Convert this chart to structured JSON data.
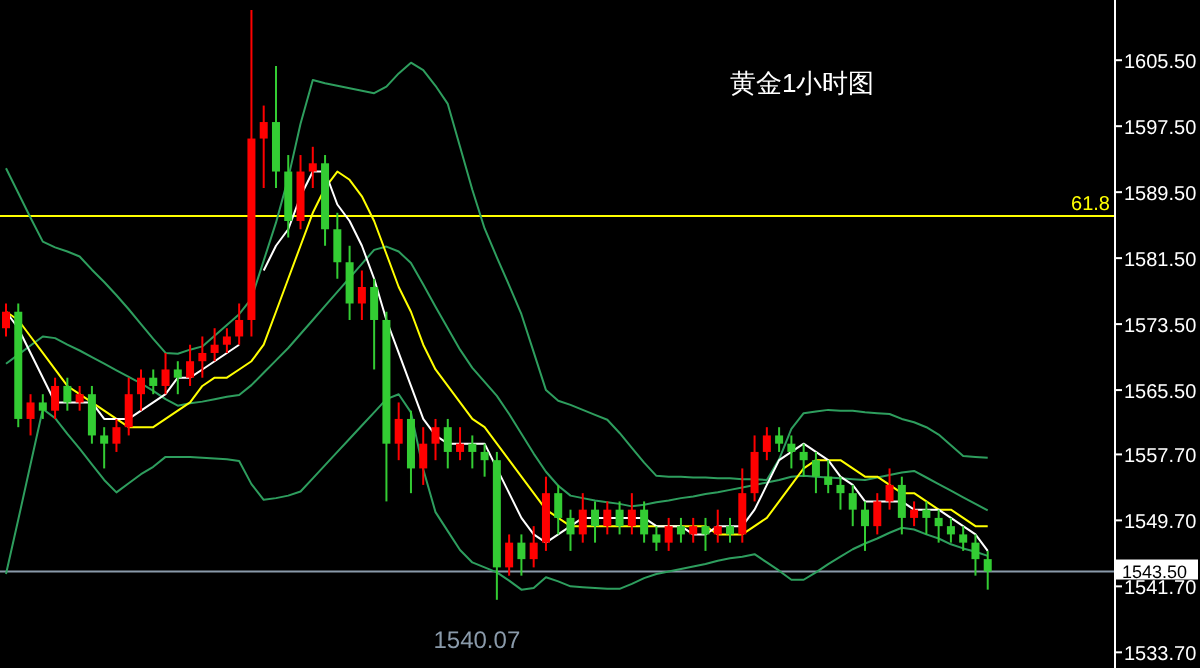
{
  "chart_data": {
    "type": "candlestick",
    "title": "黄金1小时图",
    "categories": [
      null,
      null,
      null,
      null,
      null,
      null,
      null,
      null,
      null,
      null,
      null,
      null,
      null,
      null,
      null,
      null,
      null,
      null,
      null,
      null,
      null,
      null,
      null,
      null,
      null,
      null,
      null,
      null,
      null,
      null,
      null,
      null,
      null,
      null,
      null,
      null,
      null,
      null,
      null,
      null,
      null,
      null,
      null,
      null,
      null,
      null,
      null,
      null,
      null,
      null,
      null,
      null,
      null,
      null,
      null,
      null,
      null,
      null,
      null,
      null,
      null,
      null,
      null,
      null,
      null,
      null,
      null,
      null,
      null,
      null,
      null,
      null,
      null,
      null,
      null,
      null,
      null,
      null,
      null,
      null,
      null
    ],
    "ohlc": [
      [
        1573,
        1576,
        1572,
        1575
      ],
      [
        1575,
        1576,
        1561,
        1562
      ],
      [
        1562,
        1565,
        1560,
        1564
      ],
      [
        1564,
        1565,
        1562,
        1563
      ],
      [
        1563,
        1567,
        1562,
        1566
      ],
      [
        1566,
        1567,
        1563,
        1564
      ],
      [
        1564,
        1566,
        1563,
        1565
      ],
      [
        1565,
        1566,
        1559,
        1560
      ],
      [
        1560,
        1561,
        1556,
        1559
      ],
      [
        1559,
        1562,
        1558,
        1561
      ],
      [
        1561,
        1567,
        1560,
        1565
      ],
      [
        1565,
        1568,
        1563,
        1567
      ],
      [
        1567,
        1568,
        1565,
        1566
      ],
      [
        1566,
        1570,
        1565,
        1568
      ],
      [
        1568,
        1569,
        1565,
        1567
      ],
      [
        1567,
        1571,
        1566,
        1569
      ],
      [
        1569,
        1572,
        1567,
        1570
      ],
      [
        1570,
        1573,
        1569,
        1571
      ],
      [
        1571,
        1573,
        1570,
        1572
      ],
      [
        1572,
        1576,
        1571,
        1574
      ],
      [
        1574,
        1611.6,
        1572,
        1596
      ],
      [
        1596,
        1600,
        1590,
        1598
      ],
      [
        1598,
        1604.8,
        1590,
        1592
      ],
      [
        1592,
        1594,
        1584,
        1586
      ],
      [
        1586,
        1594,
        1585,
        1592
      ],
      [
        1592,
        1595,
        1590,
        1593
      ],
      [
        1593,
        1594,
        1583,
        1585
      ],
      [
        1585,
        1587,
        1579,
        1581
      ],
      [
        1581,
        1583,
        1574,
        1576
      ],
      [
        1576,
        1580,
        1574,
        1578
      ],
      [
        1578,
        1579,
        1568,
        1574
      ],
      [
        1574,
        1575,
        1552,
        1559
      ],
      [
        1559,
        1564,
        1557,
        1562
      ],
      [
        1562,
        1563,
        1553,
        1556
      ],
      [
        1556,
        1561,
        1554,
        1559
      ],
      [
        1559,
        1562,
        1557,
        1561
      ],
      [
        1561,
        1562,
        1556,
        1558
      ],
      [
        1558,
        1561,
        1557,
        1559
      ],
      [
        1559,
        1560,
        1556,
        1558
      ],
      [
        1558,
        1559,
        1555,
        1557
      ],
      [
        1557,
        1558,
        1540.07,
        1544
      ],
      [
        1544,
        1548,
        1543,
        1547
      ],
      [
        1547,
        1548,
        1543,
        1545
      ],
      [
        1545,
        1549,
        1544,
        1547
      ],
      [
        1547,
        1555,
        1546,
        1553
      ],
      [
        1553,
        1554,
        1548,
        1550
      ],
      [
        1550,
        1551,
        1546,
        1548
      ],
      [
        1548,
        1553,
        1547,
        1551
      ],
      [
        1551,
        1552,
        1547,
        1549
      ],
      [
        1549,
        1552,
        1548,
        1551
      ],
      [
        1551,
        1552,
        1548,
        1549
      ],
      [
        1549,
        1553,
        1548,
        1551
      ],
      [
        1551,
        1552,
        1547,
        1548
      ],
      [
        1548,
        1549,
        1546,
        1547
      ],
      [
        1547,
        1550,
        1546,
        1549
      ],
      [
        1549,
        1550,
        1547,
        1548
      ],
      [
        1548,
        1550,
        1547,
        1549
      ],
      [
        1549,
        1550,
        1546,
        1548
      ],
      [
        1548,
        1551,
        1547,
        1549
      ],
      [
        1549,
        1550,
        1547,
        1548
      ],
      [
        1548,
        1556,
        1547,
        1553
      ],
      [
        1553,
        1560,
        1552,
        1558
      ],
      [
        1558,
        1561,
        1557,
        1560
      ],
      [
        1560,
        1561,
        1558,
        1559
      ],
      [
        1559,
        1560,
        1556,
        1558
      ],
      [
        1558,
        1559,
        1555,
        1557
      ],
      [
        1557,
        1558,
        1553,
        1555
      ],
      [
        1555,
        1557,
        1553,
        1554
      ],
      [
        1554,
        1555,
        1551,
        1553
      ],
      [
        1553,
        1554,
        1549,
        1551
      ],
      [
        1551,
        1552,
        1546,
        1549
      ],
      [
        1549,
        1553,
        1548,
        1552
      ],
      [
        1552,
        1556,
        1551,
        1554
      ],
      [
        1554,
        1555,
        1548,
        1550
      ],
      [
        1550,
        1552,
        1549,
        1551
      ],
      [
        1551,
        1552,
        1548,
        1550
      ],
      [
        1550,
        1551,
        1547,
        1549
      ],
      [
        1549,
        1550,
        1547,
        1548
      ],
      [
        1548,
        1549,
        1546,
        1547
      ],
      [
        1547,
        1548,
        1543,
        1545
      ],
      [
        1545,
        1546,
        1541.3,
        1543.5
      ]
    ],
    "colors": [
      "#ff0000",
      "#33cc33",
      "#ff0000",
      "#33cc33",
      "#ff0000",
      "#33cc33",
      "#ff0000",
      "#33cc33",
      "#33cc33",
      "#ff0000",
      "#ff0000",
      "#ff0000",
      "#33cc33",
      "#ff0000",
      "#33cc33",
      "#ff0000",
      "#ff0000",
      "#ff0000",
      "#ff0000",
      "#ff0000",
      "#ff0000",
      "#ff0000",
      "#33cc33",
      "#33cc33",
      "#ff0000",
      "#ff0000",
      "#33cc33",
      "#33cc33",
      "#33cc33",
      "#ff0000",
      "#33cc33",
      "#33cc33",
      "#ff0000",
      "#33cc33",
      "#ff0000",
      "#ff0000",
      "#33cc33",
      "#ff0000",
      "#33cc33",
      "#33cc33",
      "#33cc33",
      "#ff0000",
      "#33cc33",
      "#ff0000",
      "#ff0000",
      "#33cc33",
      "#33cc33",
      "#ff0000",
      "#33cc33",
      "#ff0000",
      "#33cc33",
      "#ff0000",
      "#33cc33",
      "#33cc33",
      "#ff0000",
      "#33cc33",
      "#ff0000",
      "#33cc33",
      "#ff0000",
      "#33cc33",
      "#ff0000",
      "#ff0000",
      "#ff0000",
      "#33cc33",
      "#33cc33",
      "#33cc33",
      "#33cc33",
      "#33cc33",
      "#33cc33",
      "#33cc33",
      "#33cc33",
      "#ff0000",
      "#ff0000",
      "#33cc33",
      "#ff0000",
      "#33cc33",
      "#33cc33",
      "#33cc33",
      "#33cc33",
      "#33cc33",
      "#33cc33"
    ],
    "series": [
      {
        "type": "line",
        "color": "#2e9e5e",
        "values": [
          1592.4,
          1589.4,
          1586.4,
          1583.5,
          1582.8,
          1582.3,
          1581.7,
          1580.1,
          1578.6,
          1577.0,
          1575.3,
          1573.5,
          1571.7,
          1570.0,
          1569.9,
          1570.4,
          1570.8,
          1572.1,
          1573.4,
          1574.7,
          1576.6,
          1581.2,
          1585.8,
          1591.2,
          1597.8,
          1603.1,
          1602.7,
          1602.4,
          1602.1,
          1601.8,
          1601.5,
          1602.3,
          1603.9,
          1605.2,
          1604.3,
          1602.4,
          1600.2,
          1595.0,
          1589.8,
          1585.1,
          1581.6,
          1578.2,
          1574.7,
          1570.1,
          1565.5,
          1564.2,
          1563.7,
          1563.1,
          1562.5,
          1561.9,
          1560.3,
          1558.5,
          1556.7,
          1555.1,
          1555.0,
          1555.0,
          1554.9,
          1554.9,
          1554.8,
          1554.8,
          1554.7,
          1554.7,
          1554.6,
          1557.1,
          1560.8,
          1562.7,
          1562.9,
          1563.1,
          1563.0,
          1563.0,
          1562.8,
          1562.7,
          1562.6,
          1562.0,
          1561.6,
          1561.0,
          1560.1,
          1558.8,
          1557.5,
          1557.4,
          1557.3
        ]
      },
      {
        "type": "line",
        "color": "#2e9e5e",
        "values": [
          1568.7,
          1569.8,
          1570.9,
          1572.0,
          1571.8,
          1571.0,
          1570.3,
          1569.5,
          1568.7,
          1567.9,
          1567.1,
          1566.3,
          1565.4,
          1564.4,
          1563.6,
          1563.9,
          1564.1,
          1564.4,
          1564.7,
          1564.9,
          1566.1,
          1567.6,
          1569.1,
          1570.6,
          1572.3,
          1574.0,
          1575.7,
          1577.4,
          1579.1,
          1580.8,
          1582.5,
          1582.9,
          1582.3,
          1580.9,
          1578.3,
          1575.6,
          1573.0,
          1570.4,
          1568.2,
          1566.5,
          1564.8,
          1562.6,
          1560.2,
          1557.8,
          1555.6,
          1553.9,
          1552.7,
          1552.4,
          1552.1,
          1551.9,
          1551.7,
          1551.4,
          1551.6,
          1551.9,
          1552.1,
          1552.4,
          1552.6,
          1552.9,
          1553.1,
          1553.4,
          1553.7,
          1554.0,
          1554.3,
          1554.6,
          1555.0,
          1555.1,
          1555.0,
          1554.9,
          1554.8,
          1554.7,
          1554.6,
          1554.9,
          1555.2,
          1555.5,
          1555.7,
          1554.9,
          1554.1,
          1553.3,
          1552.5,
          1551.7,
          1550.9
        ]
      },
      {
        "type": "line",
        "color": "#2e9e5e",
        "values": [
          1543.2,
          1549.8,
          1556.5,
          1563.2,
          1562.1,
          1560.2,
          1558.4,
          1556.5,
          1554.6,
          1553.1,
          1554.2,
          1555.3,
          1556.2,
          1557.4,
          1557.4,
          1557.4,
          1557.3,
          1557.2,
          1557.1,
          1556.9,
          1554.1,
          1552.2,
          1552.4,
          1552.7,
          1553.2,
          1554.8,
          1556.4,
          1558.0,
          1559.6,
          1561.2,
          1562.8,
          1564.4,
          1565.0,
          1562.8,
          1555.9,
          1550.7,
          1548.4,
          1546.1,
          1544.6,
          1544.0,
          1543.4,
          1542.4,
          1541.3,
          1541.5,
          1542.8,
          1542.3,
          1541.7,
          1541.6,
          1541.5,
          1541.4,
          1541.4,
          1542.0,
          1542.7,
          1543.2,
          1543.5,
          1543.8,
          1544.1,
          1544.4,
          1544.8,
          1545.1,
          1545.3,
          1545.6,
          1544.6,
          1543.6,
          1542.5,
          1542.5,
          1543.4,
          1544.4,
          1545.3,
          1546.2,
          1546.9,
          1547.5,
          1548.2,
          1548.8,
          1548.6,
          1548.0,
          1547.5,
          1546.8,
          1546.3,
          1545.9,
          1545.4
        ]
      },
      {
        "type": "line",
        "color": "#ffff00",
        "values": [
          1575,
          1574,
          1572,
          1570,
          1568,
          1566,
          1565,
          1564,
          1563,
          1562,
          1561,
          1561,
          1561,
          1562,
          1563,
          1564,
          1566,
          1567,
          1567,
          1568,
          1569,
          1571,
          1575,
          1579,
          1583,
          1587,
          1590,
          1592,
          1591,
          1589,
          1586,
          1582,
          1578,
          1575,
          1571,
          1568,
          1566,
          1564,
          1562,
          1561,
          1559,
          1557,
          1555,
          1553,
          1551,
          1550,
          1549,
          1549,
          1549,
          1549,
          1549,
          1549,
          1549,
          1549,
          1549,
          1549,
          1549,
          1549,
          1548,
          1548,
          1548,
          1549,
          1550,
          1552,
          1554,
          1556,
          1557,
          1557,
          1557,
          1556,
          1555,
          1555,
          1554,
          1553,
          1553,
          1552,
          1551,
          1551,
          1550,
          1549,
          1549
        ]
      },
      {
        "type": "line",
        "color": "#ffffff",
        "values": [
          1575,
          1573,
          1570,
          1567,
          1564,
          1564,
          1564,
          1564,
          1562,
          1562,
          1562,
          1563,
          1564,
          1565,
          1567,
          1567,
          1568,
          1569,
          1570,
          1571,
          null,
          1580,
          1583,
          1585,
          1589,
          1592,
          1592,
          1588,
          1586,
          1583,
          1579,
          1574,
          1570,
          1566,
          1562,
          1560,
          1559,
          1559,
          1559,
          1559,
          1556,
          1553,
          1550,
          1548,
          1547,
          1548,
          1549,
          1550,
          1550,
          1550,
          1550,
          1550,
          1550,
          1549,
          1549,
          1549,
          1548,
          1548,
          1549,
          1549,
          1549,
          1551,
          1554,
          1557,
          1558,
          1559,
          1558,
          1557,
          1555,
          1554,
          1552,
          1552,
          1552,
          1552,
          1551,
          1551,
          1551,
          1550,
          1549,
          1548,
          1546
        ]
      }
    ],
    "ylim": [
      1531.8,
      1612.8
    ],
    "yticks": [
      {
        "value": 1605.5,
        "label": "1605.50"
      },
      {
        "value": 1597.5,
        "label": "1597.50"
      },
      {
        "value": 1589.5,
        "label": "1589.50"
      },
      {
        "value": 1581.5,
        "label": "1581.50"
      },
      {
        "value": 1573.5,
        "label": "1573.50"
      },
      {
        "value": 1565.5,
        "label": "1565.50"
      },
      {
        "value": 1557.7,
        "label": "1557.70"
      },
      {
        "value": 1549.7,
        "label": "1549.70"
      },
      {
        "value": 1541.7,
        "label": "1541.70"
      },
      {
        "value": 1533.7,
        "label": "1533.70"
      }
    ],
    "ref_lines": [
      {
        "axis": "y",
        "value": 1586.6,
        "color": "#ffff00"
      },
      {
        "axis": "y",
        "value": 1543.5,
        "label": "1543.50",
        "color": "#8a9aaa"
      }
    ],
    "annotations": [
      {
        "text": "61.8",
        "y": 1586.6
      },
      "1540.07"
    ],
    "tick_labels": "y",
    "grid": false
  }
}
